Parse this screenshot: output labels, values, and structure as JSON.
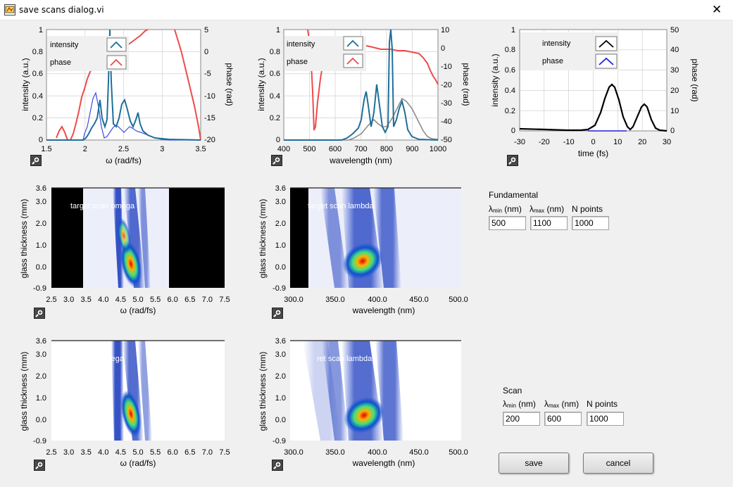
{
  "window": {
    "title": "save scans dialog.vi",
    "close_glyph": "✕"
  },
  "graphs": {
    "omega": {
      "x_label": "ω (rad/fs)",
      "y_label": "intensity (a.u.)",
      "y2_label": "phase (rad)",
      "x_ticks": [
        "1.5",
        "2",
        "2.5",
        "3",
        "3.5"
      ],
      "y_ticks": [
        "0",
        "0.2",
        "0.4",
        "0.6",
        "0.8",
        "1"
      ],
      "y2_ticks": [
        "-20",
        "-15",
        "-10",
        "-5",
        "0",
        "5"
      ],
      "legend": [
        "intensity",
        "phase"
      ]
    },
    "wavelength": {
      "x_label": "wavelength (nm)",
      "y_label": "intensity (a.u.)",
      "y2_label": "phase (rad)",
      "x_ticks": [
        "400",
        "500",
        "600",
        "700",
        "800",
        "900",
        "1000"
      ],
      "y_ticks": [
        "0",
        "0.2",
        "0.4",
        "0.6",
        "0.8",
        "1"
      ],
      "y2_ticks": [
        "-50",
        "-40",
        "-30",
        "-20",
        "-10",
        "0",
        "10"
      ],
      "legend": [
        "intensity",
        "phase"
      ]
    },
    "time": {
      "x_label": "time (fs)",
      "y_label": "intensity (a.u.)",
      "y2_label": "phase (rad)",
      "x_ticks": [
        "-30",
        "-20",
        "-10",
        "0",
        "10",
        "20",
        "30"
      ],
      "y_ticks": [
        "0",
        "0.2",
        "0.4",
        "0.6",
        "0.8",
        "1"
      ],
      "y2_ticks": [
        "0",
        "10",
        "20",
        "30",
        "40",
        "50"
      ],
      "legend": [
        "intensity",
        "phase"
      ]
    },
    "scan_omega_target": {
      "overlay": "target scan omega",
      "x_label": "ω (rad/fs)",
      "y_label": "glass thickness (mm)",
      "x_ticks": [
        "2.5",
        "3.0",
        "3.5",
        "4.0",
        "4.5",
        "5.0",
        "5.5",
        "6.0",
        "6.5",
        "7.0",
        "7.5"
      ],
      "y_ticks": [
        "-0.9",
        "0.0",
        "1.0",
        "2.0",
        "3.0",
        "3.6"
      ]
    },
    "scan_lambda_target": {
      "overlay": "target scan lambda",
      "x_label": "wavelength (nm)",
      "y_label": "glass thickness (mm)",
      "x_ticks": [
        "300.0",
        "350.0",
        "400.0",
        "450.0",
        "500.0"
      ],
      "y_ticks": [
        "-0.9",
        "0.0",
        "1.0",
        "2.0",
        "3.0",
        "3.6"
      ]
    },
    "scan_omega_retrieved": {
      "overlay": "ret scan omega",
      "x_label": "ω (rad/fs)",
      "y_label": "glass thickness (mm)",
      "x_ticks": [
        "2.5",
        "3.0",
        "3.5",
        "4.0",
        "4.5",
        "5.0",
        "5.5",
        "6.0",
        "6.5",
        "7.0",
        "7.5"
      ],
      "y_ticks": [
        "-0.9",
        "0.0",
        "1.0",
        "2.0",
        "3.0",
        "3.6"
      ]
    },
    "scan_lambda_retrieved": {
      "overlay": "ret scan lambda",
      "x_label": "wavelength (nm)",
      "y_label": "glass thickness (mm)",
      "x_ticks": [
        "300.0",
        "350.0",
        "400.0",
        "450.0",
        "500.0"
      ],
      "y_ticks": [
        "-0.9",
        "0.0",
        "1.0",
        "2.0",
        "3.0",
        "3.6"
      ]
    }
  },
  "fundamental": {
    "heading": "Fundamental",
    "lambda_symbol": "λ",
    "min_sub": "min",
    "max_sub": "max",
    "unit": "(nm)",
    "npoints_label": "N points",
    "lambda_min": "500",
    "lambda_max": "1100",
    "n_points": "1000"
  },
  "scan": {
    "heading": "Scan",
    "lambda_symbol": "λ",
    "min_sub": "min",
    "max_sub": "max",
    "unit": "(nm)",
    "npoints_label": "N points",
    "lambda_min": "200",
    "lambda_max": "600",
    "n_points": "1000"
  },
  "buttons": {
    "save": "save",
    "cancel": "cancel"
  },
  "colors": {
    "intensity_line": "#1f6f9a",
    "phase_line": "#ee4b4b",
    "time_intensity": "#000000",
    "time_phase": "#2020e0",
    "comparison_line": "#8c8c8c",
    "spectrogram_low": "#eceefa",
    "spectrogram_high": "#d80000"
  },
  "icons": {
    "app": "labview-vi-icon",
    "zoom": "graph-palette-zoom-icon"
  }
}
